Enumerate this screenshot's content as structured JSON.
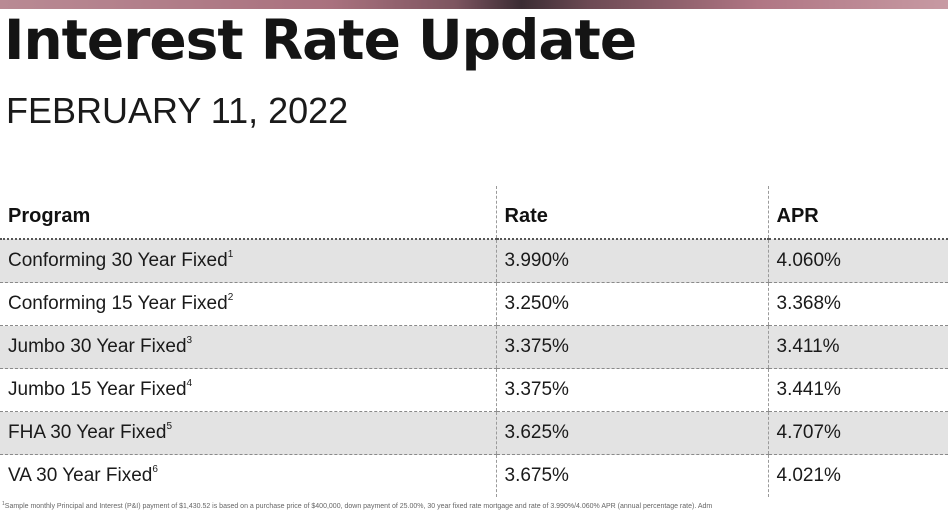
{
  "header": {
    "title": "Interest Rate Update",
    "date": "FEBRUARY 11, 2022"
  },
  "table": {
    "columns": [
      "Program",
      "Rate",
      "APR"
    ],
    "rows": [
      {
        "program": "Conforming 30 Year Fixed",
        "note": "1",
        "rate": "3.990%",
        "apr": "4.060%"
      },
      {
        "program": "Conforming 15 Year Fixed",
        "note": "2",
        "rate": "3.250%",
        "apr": "3.368%"
      },
      {
        "program": "Jumbo 30 Year Fixed",
        "note": "3",
        "rate": "3.375%",
        "apr": "3.411%"
      },
      {
        "program": "Jumbo 15 Year Fixed",
        "note": "4",
        "rate": "3.375%",
        "apr": "3.441%"
      },
      {
        "program": "FHA 30 Year Fixed",
        "note": "5",
        "rate": "3.625%",
        "apr": "4.707%"
      },
      {
        "program": "VA 30 Year Fixed",
        "note": "6",
        "rate": "3.675%",
        "apr": "4.021%"
      }
    ]
  },
  "footnote": {
    "marker": "1",
    "text": "Sample monthly Principal and Interest (P&I) payment of $1,430.52 is based on a purchase price of $400,000, down payment of 25.00%, 30 year fixed rate mortgage and rate of 3.990%/4.060% APR (annual percentage rate). Adm"
  },
  "colors": {
    "row_shade": "#e3e3e3",
    "title_text": "#141414",
    "top_band": "#a9717e"
  }
}
